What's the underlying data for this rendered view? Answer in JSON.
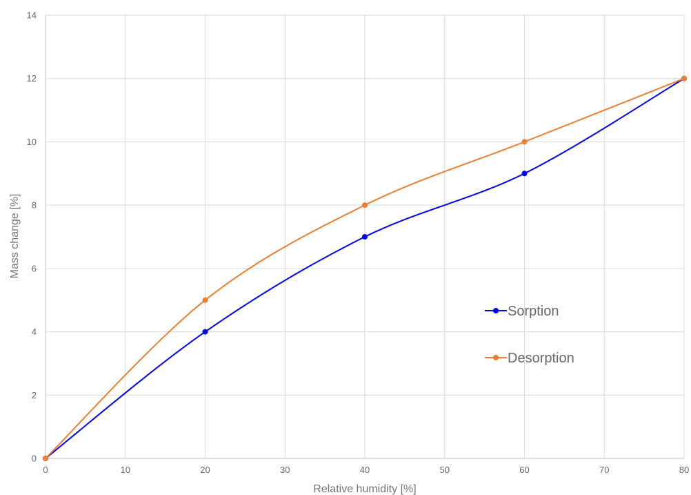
{
  "chart_data": {
    "type": "line",
    "title": "",
    "xlabel": "Relative humidity [%]",
    "ylabel": "Mass change [%]",
    "xlim": [
      0,
      80
    ],
    "ylim": [
      0,
      14
    ],
    "xticks": [
      0,
      10,
      20,
      30,
      40,
      50,
      60,
      70,
      80
    ],
    "yticks": [
      0,
      2,
      4,
      6,
      8,
      10,
      12,
      14
    ],
    "grid": true,
    "smooth": true,
    "legend_position": "right-center",
    "series": [
      {
        "name": "Sorption",
        "color": "#0000ff",
        "x": [
          0,
          20,
          40,
          60,
          80
        ],
        "y": [
          0,
          4,
          7,
          9,
          12
        ]
      },
      {
        "name": "Desorption",
        "color": "#ed7d31",
        "x": [
          0,
          20,
          40,
          60,
          80
        ],
        "y": [
          0,
          5,
          8,
          10,
          12
        ]
      }
    ]
  }
}
